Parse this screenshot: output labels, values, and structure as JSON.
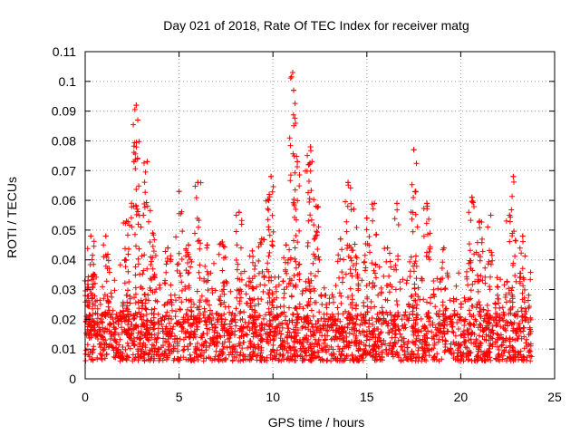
{
  "chart_data": {
    "type": "scatter",
    "title": "Day 021 of 2018, Rate Of TEC Index for receiver matg",
    "xlabel": "GPS time / hours",
    "ylabel": "ROTI / TECUs",
    "xlim": [
      0,
      25
    ],
    "ylim": [
      0,
      0.11
    ],
    "grid": true,
    "marker": "+",
    "x_ticks": [
      0,
      5,
      10,
      15,
      20,
      25
    ],
    "y_ticks": [
      0,
      0.01,
      0.02,
      0.03,
      0.04,
      0.05,
      0.06,
      0.07,
      0.08,
      0.09,
      0.1,
      0.11
    ],
    "y_tick_labels": [
      "0",
      "0.01",
      "0.02",
      "0.03",
      "0.04",
      "0.05",
      "0.06",
      "0.07",
      "0.08",
      "0.09",
      "0.1",
      "0.11"
    ],
    "series": [
      {
        "name": "ROTI",
        "color": "#ff0000",
        "x_range": [
          0,
          23.8
        ],
        "baseline_range": [
          0.006,
          0.022
        ],
        "peaks": [
          {
            "x": 0.15,
            "y": 0.033
          },
          {
            "x": 0.3,
            "y": 0.048
          },
          {
            "x": 0.5,
            "y": 0.035
          },
          {
            "x": 1.1,
            "y": 0.048
          },
          {
            "x": 2.2,
            "y": 0.053
          },
          {
            "x": 2.6,
            "y": 0.073
          },
          {
            "x": 2.72,
            "y": 0.092
          },
          {
            "x": 2.8,
            "y": 0.087
          },
          {
            "x": 3.1,
            "y": 0.055
          },
          {
            "x": 3.3,
            "y": 0.073
          },
          {
            "x": 3.6,
            "y": 0.049
          },
          {
            "x": 4.4,
            "y": 0.044
          },
          {
            "x": 5.0,
            "y": 0.063
          },
          {
            "x": 5.5,
            "y": 0.045
          },
          {
            "x": 6.0,
            "y": 0.066
          },
          {
            "x": 6.5,
            "y": 0.045
          },
          {
            "x": 7.3,
            "y": 0.046
          },
          {
            "x": 8.2,
            "y": 0.056
          },
          {
            "x": 8.9,
            "y": 0.043
          },
          {
            "x": 9.4,
            "y": 0.047
          },
          {
            "x": 9.8,
            "y": 0.062
          },
          {
            "x": 9.9,
            "y": 0.068
          },
          {
            "x": 10.7,
            "y": 0.045
          },
          {
            "x": 11.05,
            "y": 0.103
          },
          {
            "x": 11.1,
            "y": 0.097
          },
          {
            "x": 11.3,
            "y": 0.073
          },
          {
            "x": 11.9,
            "y": 0.072
          },
          {
            "x": 12.0,
            "y": 0.078
          },
          {
            "x": 12.3,
            "y": 0.058
          },
          {
            "x": 13.6,
            "y": 0.047
          },
          {
            "x": 14.0,
            "y": 0.066
          },
          {
            "x": 14.3,
            "y": 0.057
          },
          {
            "x": 15.0,
            "y": 0.054
          },
          {
            "x": 15.4,
            "y": 0.059
          },
          {
            "x": 16.1,
            "y": 0.044
          },
          {
            "x": 16.6,
            "y": 0.059
          },
          {
            "x": 17.5,
            "y": 0.077
          },
          {
            "x": 17.6,
            "y": 0.063
          },
          {
            "x": 18.2,
            "y": 0.059
          },
          {
            "x": 19.1,
            "y": 0.044
          },
          {
            "x": 20.6,
            "y": 0.061
          },
          {
            "x": 21.0,
            "y": 0.053
          },
          {
            "x": 21.6,
            "y": 0.055
          },
          {
            "x": 22.6,
            "y": 0.055
          },
          {
            "x": 22.8,
            "y": 0.068
          },
          {
            "x": 23.3,
            "y": 0.048
          }
        ]
      }
    ]
  }
}
